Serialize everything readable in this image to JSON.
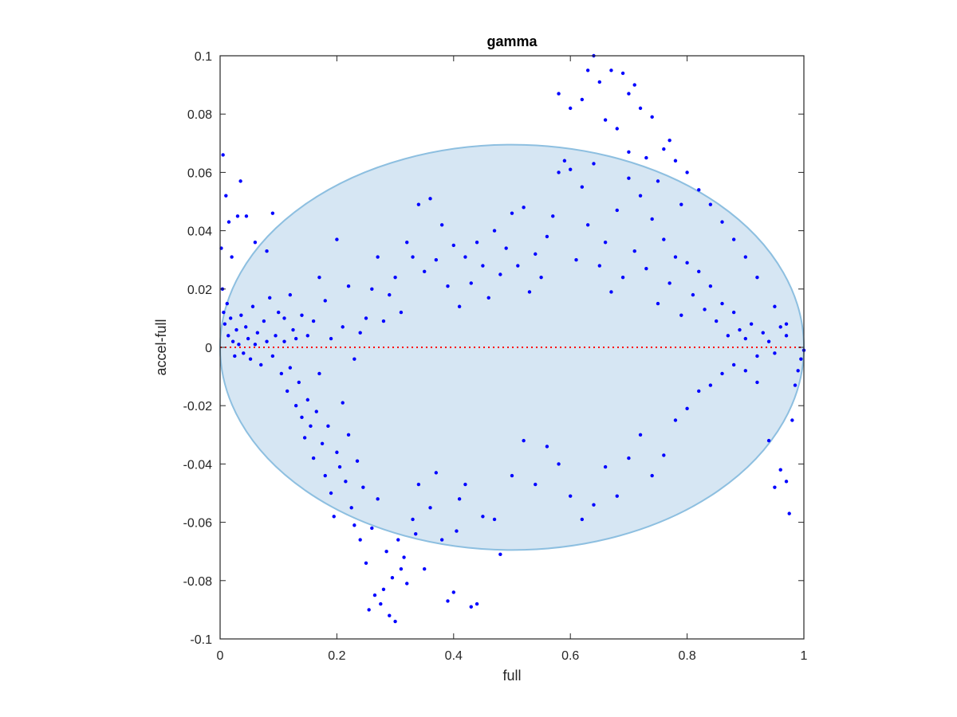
{
  "chart_data": {
    "type": "scatter",
    "title": "gamma",
    "xlabel": "full",
    "ylabel": "accel-full",
    "xlim": [
      0,
      1
    ],
    "ylim": [
      -0.1,
      0.1
    ],
    "xticks": [
      "0",
      "0.2",
      "0.4",
      "0.6",
      "0.8",
      "1"
    ],
    "xtick_values": [
      0,
      0.2,
      0.4,
      0.6,
      0.8,
      1
    ],
    "yticks": [
      "-0.1",
      "-0.08",
      "-0.06",
      "-0.04",
      "-0.02",
      "0",
      "0.02",
      "0.04",
      "0.06",
      "0.08",
      "0.1"
    ],
    "ytick_values": [
      -0.1,
      -0.08,
      -0.06,
      -0.04,
      -0.02,
      0,
      0.02,
      0.04,
      0.06,
      0.08,
      0.1
    ],
    "grid": false,
    "reference_line": {
      "y": 0,
      "style": "dotted",
      "color": "#ff0000"
    },
    "ellipse": {
      "center_x": 0.5,
      "center_y": 0.0,
      "radius_x": 0.5,
      "radius_y": 0.0695,
      "fill": "#d6e6f3",
      "stroke": "#8dbfe0"
    },
    "marker_color": "#0000ff",
    "series": [
      {
        "points": [
          [
            0.005,
            0.066
          ],
          [
            0.01,
            0.052
          ],
          [
            0.015,
            0.043
          ],
          [
            0.02,
            0.031
          ],
          [
            0.03,
            0.045
          ],
          [
            0.035,
            0.057
          ],
          [
            0.045,
            0.045
          ],
          [
            0.06,
            0.036
          ],
          [
            0.08,
            0.033
          ],
          [
            0.09,
            0.046
          ],
          [
            0.002,
            0.034
          ],
          [
            0.004,
            0.02
          ],
          [
            0.006,
            0.012
          ],
          [
            0.008,
            0.008
          ],
          [
            0.012,
            0.015
          ],
          [
            0.014,
            0.004
          ],
          [
            0.018,
            0.01
          ],
          [
            0.022,
            0.002
          ],
          [
            0.025,
            -0.003
          ],
          [
            0.028,
            0.006
          ],
          [
            0.032,
            0.001
          ],
          [
            0.036,
            0.011
          ],
          [
            0.04,
            -0.002
          ],
          [
            0.044,
            0.007
          ],
          [
            0.048,
            0.003
          ],
          [
            0.052,
            -0.004
          ],
          [
            0.056,
            0.014
          ],
          [
            0.06,
            0.001
          ],
          [
            0.064,
            0.005
          ],
          [
            0.07,
            -0.006
          ],
          [
            0.075,
            0.009
          ],
          [
            0.08,
            0.002
          ],
          [
            0.085,
            0.017
          ],
          [
            0.09,
            -0.003
          ],
          [
            0.095,
            0.004
          ],
          [
            0.1,
            0.012
          ],
          [
            0.105,
            -0.009
          ],
          [
            0.11,
            0.002
          ],
          [
            0.115,
            -0.015
          ],
          [
            0.12,
            -0.007
          ],
          [
            0.125,
            0.006
          ],
          [
            0.13,
            -0.02
          ],
          [
            0.135,
            -0.012
          ],
          [
            0.14,
            -0.024
          ],
          [
            0.145,
            -0.031
          ],
          [
            0.15,
            -0.018
          ],
          [
            0.155,
            -0.027
          ],
          [
            0.16,
            -0.038
          ],
          [
            0.165,
            -0.022
          ],
          [
            0.17,
            -0.009
          ],
          [
            0.175,
            -0.033
          ],
          [
            0.18,
            -0.044
          ],
          [
            0.185,
            -0.027
          ],
          [
            0.19,
            -0.05
          ],
          [
            0.195,
            -0.058
          ],
          [
            0.2,
            -0.036
          ],
          [
            0.205,
            -0.041
          ],
          [
            0.21,
            -0.019
          ],
          [
            0.215,
            -0.046
          ],
          [
            0.22,
            -0.03
          ],
          [
            0.225,
            -0.055
          ],
          [
            0.23,
            -0.061
          ],
          [
            0.235,
            -0.039
          ],
          [
            0.24,
            -0.066
          ],
          [
            0.245,
            -0.048
          ],
          [
            0.25,
            -0.074
          ],
          [
            0.255,
            -0.09
          ],
          [
            0.26,
            -0.062
          ],
          [
            0.265,
            -0.085
          ],
          [
            0.27,
            -0.052
          ],
          [
            0.275,
            -0.088
          ],
          [
            0.28,
            -0.083
          ],
          [
            0.285,
            -0.07
          ],
          [
            0.29,
            -0.092
          ],
          [
            0.295,
            -0.079
          ],
          [
            0.3,
            -0.094
          ],
          [
            0.305,
            -0.066
          ],
          [
            0.31,
            -0.076
          ],
          [
            0.315,
            -0.072
          ],
          [
            0.32,
            -0.081
          ],
          [
            0.33,
            -0.059
          ],
          [
            0.335,
            -0.064
          ],
          [
            0.34,
            -0.047
          ],
          [
            0.35,
            -0.076
          ],
          [
            0.36,
            -0.055
          ],
          [
            0.37,
            -0.043
          ],
          [
            0.38,
            -0.066
          ],
          [
            0.39,
            -0.087
          ],
          [
            0.4,
            -0.084
          ],
          [
            0.405,
            -0.063
          ],
          [
            0.41,
            -0.052
          ],
          [
            0.42,
            -0.047
          ],
          [
            0.43,
            -0.089
          ],
          [
            0.44,
            -0.088
          ],
          [
            0.45,
            -0.058
          ],
          [
            0.47,
            -0.059
          ],
          [
            0.48,
            -0.071
          ],
          [
            0.5,
            -0.044
          ],
          [
            0.52,
            -0.032
          ],
          [
            0.54,
            -0.047
          ],
          [
            0.56,
            -0.034
          ],
          [
            0.58,
            -0.04
          ],
          [
            0.6,
            -0.051
          ],
          [
            0.62,
            -0.059
          ],
          [
            0.64,
            -0.054
          ],
          [
            0.66,
            -0.041
          ],
          [
            0.68,
            -0.051
          ],
          [
            0.7,
            -0.038
          ],
          [
            0.72,
            -0.03
          ],
          [
            0.74,
            -0.044
          ],
          [
            0.76,
            -0.037
          ],
          [
            0.78,
            -0.025
          ],
          [
            0.8,
            -0.021
          ],
          [
            0.82,
            -0.015
          ],
          [
            0.84,
            -0.013
          ],
          [
            0.86,
            -0.009
          ],
          [
            0.88,
            -0.006
          ],
          [
            0.9,
            -0.008
          ],
          [
            0.92,
            -0.012
          ],
          [
            0.94,
            -0.032
          ],
          [
            0.95,
            -0.048
          ],
          [
            0.96,
            -0.042
          ],
          [
            0.97,
            -0.046
          ],
          [
            0.975,
            -0.057
          ],
          [
            0.98,
            -0.025
          ],
          [
            0.985,
            -0.013
          ],
          [
            0.99,
            -0.008
          ],
          [
            0.995,
            -0.004
          ],
          [
            1.0,
            -0.001
          ],
          [
            0.97,
            0.004
          ],
          [
            0.96,
            0.007
          ],
          [
            0.95,
            -0.002
          ],
          [
            0.94,
            0.002
          ],
          [
            0.93,
            0.005
          ],
          [
            0.92,
            -0.003
          ],
          [
            0.91,
            0.008
          ],
          [
            0.9,
            0.003
          ],
          [
            0.89,
            0.006
          ],
          [
            0.88,
            0.012
          ],
          [
            0.87,
            0.004
          ],
          [
            0.86,
            0.015
          ],
          [
            0.85,
            0.009
          ],
          [
            0.84,
            0.021
          ],
          [
            0.83,
            0.013
          ],
          [
            0.82,
            0.026
          ],
          [
            0.81,
            0.018
          ],
          [
            0.8,
            0.029
          ],
          [
            0.79,
            0.011
          ],
          [
            0.78,
            0.031
          ],
          [
            0.77,
            0.022
          ],
          [
            0.76,
            0.037
          ],
          [
            0.75,
            0.015
          ],
          [
            0.74,
            0.044
          ],
          [
            0.73,
            0.027
          ],
          [
            0.72,
            0.052
          ],
          [
            0.71,
            0.033
          ],
          [
            0.7,
            0.058
          ],
          [
            0.69,
            0.024
          ],
          [
            0.68,
            0.047
          ],
          [
            0.67,
            0.019
          ],
          [
            0.66,
            0.036
          ],
          [
            0.65,
            0.028
          ],
          [
            0.64,
            0.063
          ],
          [
            0.63,
            0.042
          ],
          [
            0.62,
            0.055
          ],
          [
            0.61,
            0.03
          ],
          [
            0.6,
            0.061
          ],
          [
            0.59,
            0.064
          ],
          [
            0.58,
            0.06
          ],
          [
            0.57,
            0.045
          ],
          [
            0.56,
            0.038
          ],
          [
            0.55,
            0.024
          ],
          [
            0.54,
            0.032
          ],
          [
            0.53,
            0.019
          ],
          [
            0.52,
            0.048
          ],
          [
            0.51,
            0.028
          ],
          [
            0.5,
            0.046
          ],
          [
            0.49,
            0.034
          ],
          [
            0.48,
            0.025
          ],
          [
            0.47,
            0.04
          ],
          [
            0.46,
            0.017
          ],
          [
            0.45,
            0.028
          ],
          [
            0.44,
            0.036
          ],
          [
            0.43,
            0.022
          ],
          [
            0.42,
            0.031
          ],
          [
            0.41,
            0.014
          ],
          [
            0.4,
            0.035
          ],
          [
            0.39,
            0.021
          ],
          [
            0.38,
            0.042
          ],
          [
            0.37,
            0.03
          ],
          [
            0.36,
            0.051
          ],
          [
            0.35,
            0.026
          ],
          [
            0.34,
            0.049
          ],
          [
            0.33,
            0.031
          ],
          [
            0.32,
            0.036
          ],
          [
            0.31,
            0.012
          ],
          [
            0.3,
            0.024
          ],
          [
            0.29,
            0.018
          ],
          [
            0.28,
            0.009
          ],
          [
            0.27,
            0.031
          ],
          [
            0.26,
            0.02
          ],
          [
            0.25,
            0.01
          ],
          [
            0.24,
            0.005
          ],
          [
            0.23,
            -0.004
          ],
          [
            0.22,
            0.021
          ],
          [
            0.21,
            0.007
          ],
          [
            0.2,
            0.037
          ],
          [
            0.19,
            0.003
          ],
          [
            0.18,
            0.016
          ],
          [
            0.17,
            0.024
          ],
          [
            0.16,
            0.009
          ],
          [
            0.15,
            0.004
          ],
          [
            0.14,
            0.011
          ],
          [
            0.13,
            0.003
          ],
          [
            0.12,
            0.018
          ],
          [
            0.11,
            0.01
          ],
          [
            0.63,
            0.095
          ],
          [
            0.65,
            0.091
          ],
          [
            0.67,
            0.095
          ],
          [
            0.69,
            0.094
          ],
          [
            0.7,
            0.087
          ],
          [
            0.71,
            0.09
          ],
          [
            0.72,
            0.082
          ],
          [
            0.74,
            0.079
          ],
          [
            0.76,
            0.068
          ],
          [
            0.77,
            0.071
          ],
          [
            0.78,
            0.064
          ],
          [
            0.8,
            0.06
          ],
          [
            0.82,
            0.054
          ],
          [
            0.84,
            0.049
          ],
          [
            0.86,
            0.043
          ],
          [
            0.88,
            0.037
          ],
          [
            0.9,
            0.031
          ],
          [
            0.92,
            0.024
          ],
          [
            0.95,
            0.014
          ],
          [
            0.97,
            0.008
          ],
          [
            0.62,
            0.085
          ],
          [
            0.6,
            0.082
          ],
          [
            0.58,
            0.087
          ],
          [
            0.64,
            0.1
          ],
          [
            0.66,
            0.078
          ],
          [
            0.68,
            0.075
          ],
          [
            0.7,
            0.067
          ],
          [
            0.73,
            0.065
          ],
          [
            0.75,
            0.057
          ],
          [
            0.79,
            0.049
          ]
        ]
      }
    ]
  }
}
